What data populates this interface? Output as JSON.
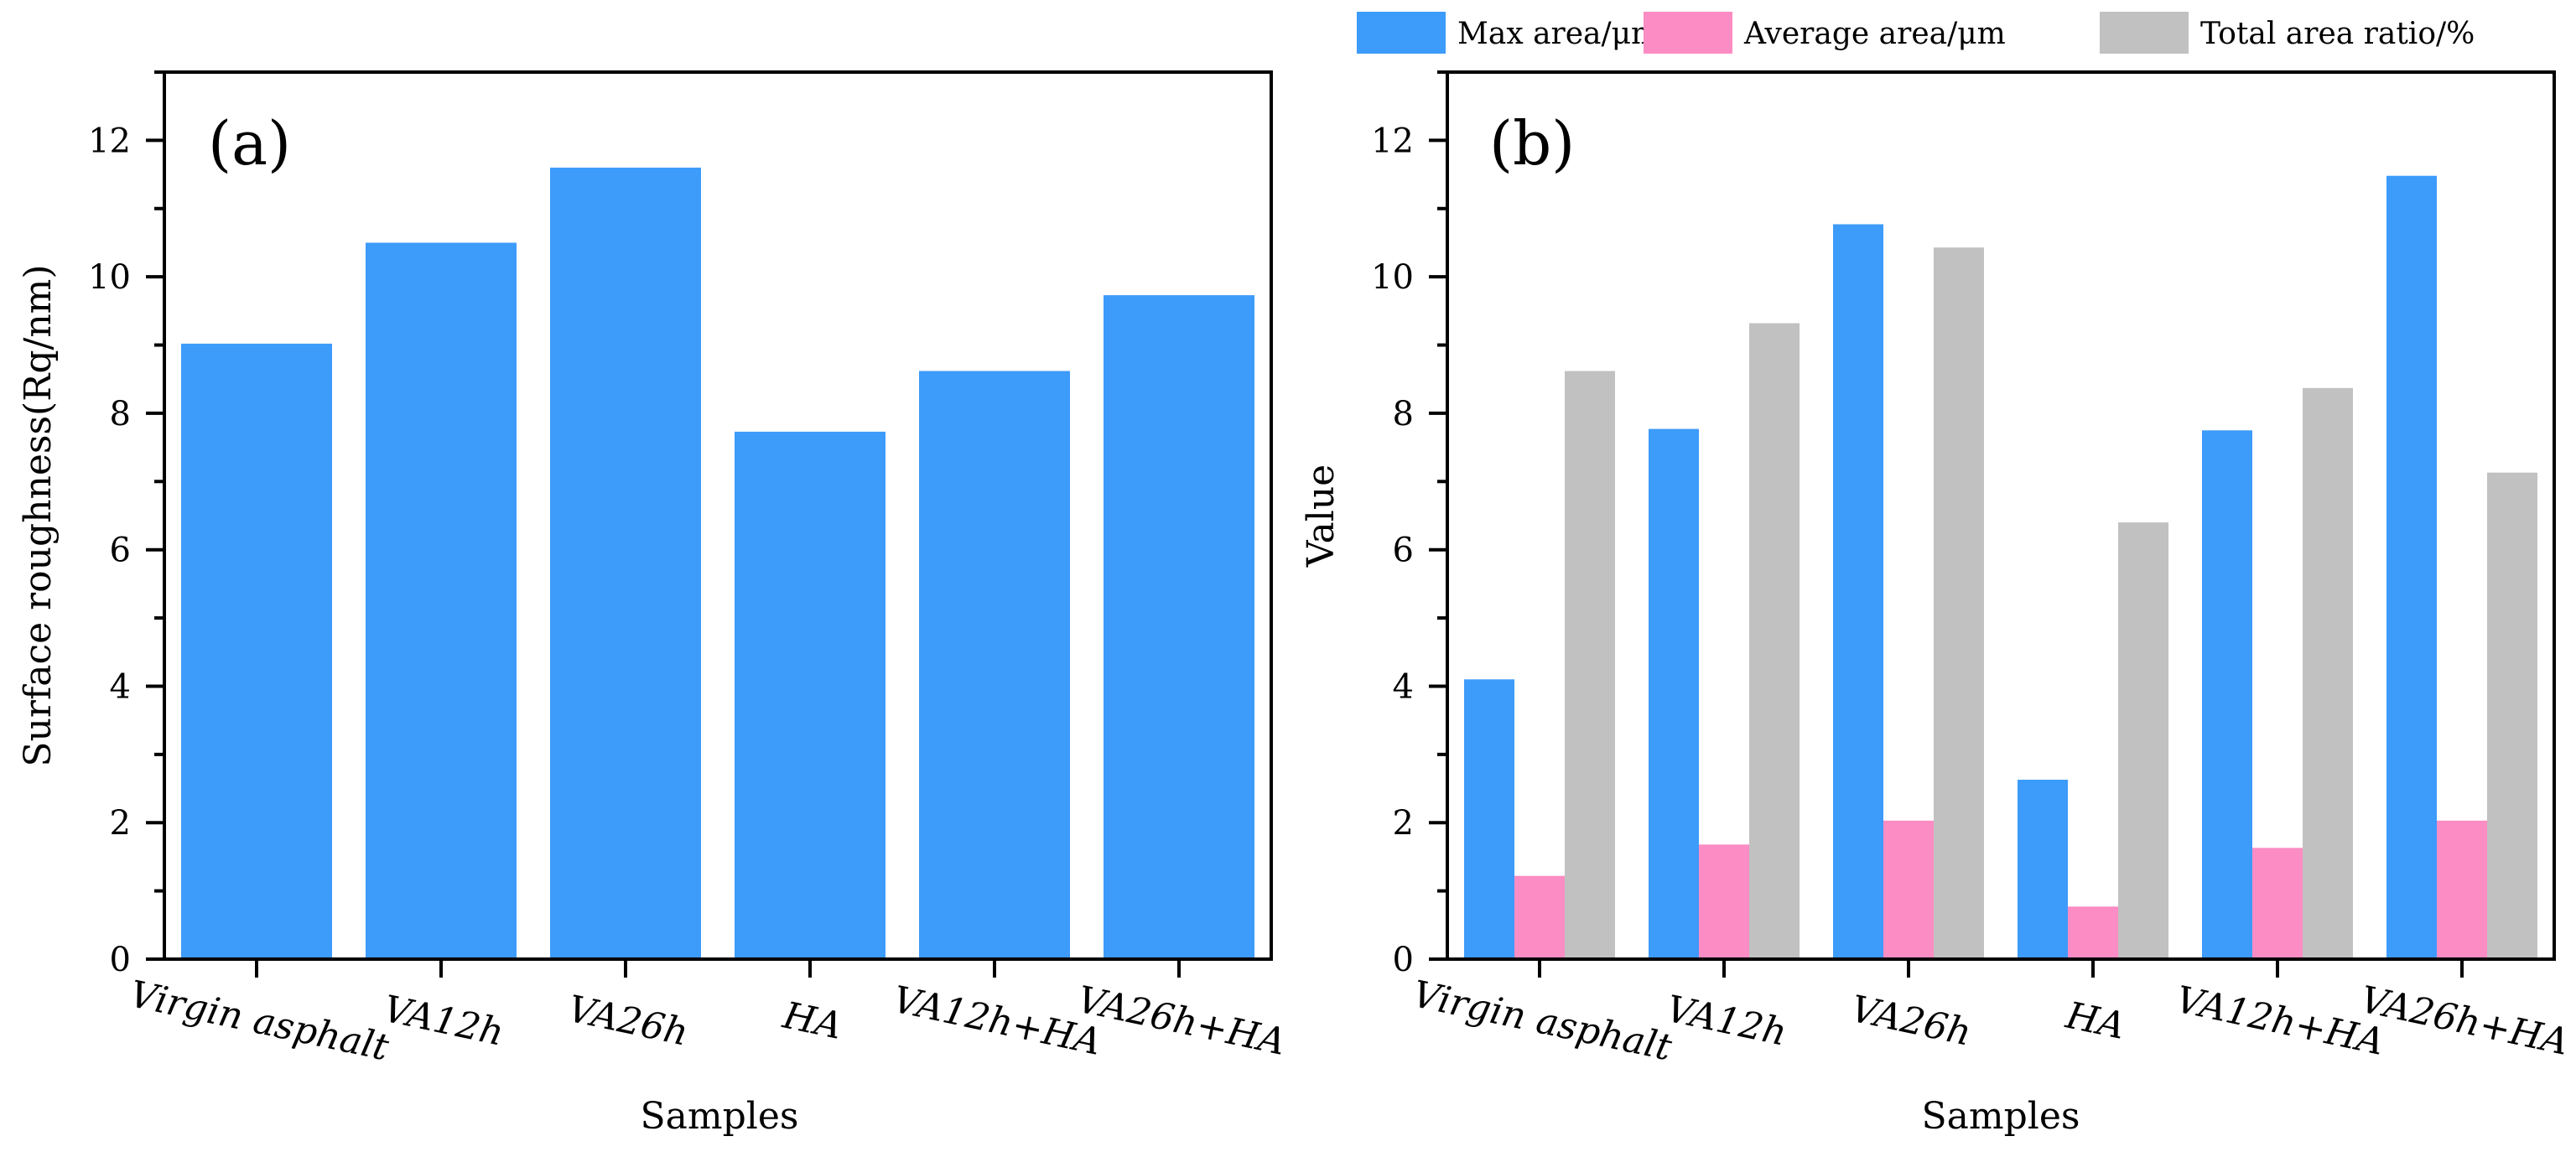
{
  "chart_data": [
    {
      "type": "bar",
      "panel_label": "(a)",
      "categories": [
        "Virgin asphalt",
        "VA12h",
        "VA26h",
        "HA",
        "VA12h+HA",
        "VA26h+HA"
      ],
      "series": [
        {
          "name": "Surface roughness",
          "values": [
            9.02,
            10.5,
            11.6,
            7.73,
            8.62,
            9.73
          ]
        }
      ],
      "xlabel": "Samples",
      "ylabel": "Surface roughness(Rq/nm)",
      "ylim": [
        0,
        13
      ],
      "yticks": [
        0,
        2,
        4,
        6,
        8,
        10,
        12
      ],
      "grid": false,
      "legend": "none"
    },
    {
      "type": "bar",
      "panel_label": "(b)",
      "categories": [
        "Virgin asphalt",
        "VA12h",
        "VA26h",
        "HA",
        "VA12h+HA",
        "VA26h+HA"
      ],
      "series": [
        {
          "name": "Max area/μm",
          "values": [
            4.1,
            7.77,
            10.77,
            2.63,
            7.75,
            11.48
          ]
        },
        {
          "name": "Average area/μm",
          "values": [
            1.22,
            1.68,
            2.03,
            0.77,
            1.63,
            2.03
          ]
        },
        {
          "name": "Total area ratio/%",
          "values": [
            8.62,
            9.32,
            10.43,
            6.4,
            8.37,
            7.13
          ]
        }
      ],
      "xlabel": "Samples",
      "ylabel": "Value",
      "ylim": [
        0,
        13
      ],
      "yticks": [
        0,
        2,
        4,
        6,
        8,
        10,
        12
      ],
      "grid": false,
      "legend": "top-right, above plot"
    }
  ],
  "colors": {
    "max_area": "#3d9bfa",
    "average_area": "#fc8cc4",
    "total_area_ratio": "#c1c1c1",
    "roughness": "#3d9bfa",
    "axis": "#000000"
  }
}
